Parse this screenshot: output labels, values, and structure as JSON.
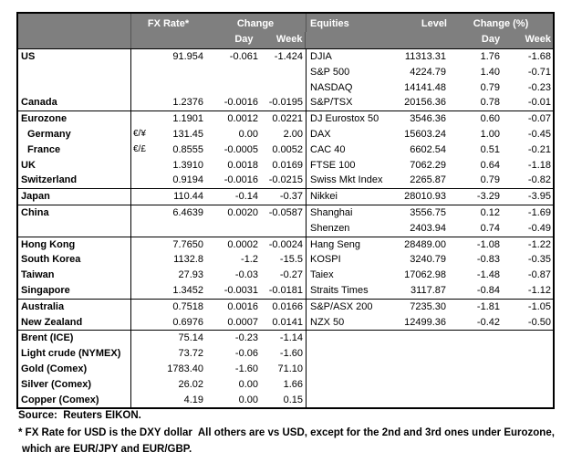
{
  "header": {
    "fx_rate": "FX Rate*",
    "change": "Change",
    "day": "Day",
    "week": "Week",
    "equities": "Equities",
    "level": "Level",
    "change_pct": "Change (%)",
    "day2": "Day",
    "week2": "Week"
  },
  "rows": [
    {
      "label": "US",
      "sym": "",
      "fx": "91.954",
      "fx_day": "-0.061",
      "fx_week": "-1.424",
      "eq": "DJIA",
      "level": "11313.31",
      "eq_day": "1.76",
      "eq_week": "-1.68",
      "indent": false,
      "group_start": false
    },
    {
      "label": "",
      "sym": "",
      "fx": "",
      "fx_day": "",
      "fx_week": "",
      "eq": "S&P 500",
      "level": "4224.79",
      "eq_day": "1.40",
      "eq_week": "-0.71",
      "indent": false,
      "group_start": false
    },
    {
      "label": "",
      "sym": "",
      "fx": "",
      "fx_day": "",
      "fx_week": "",
      "eq": "NASDAQ",
      "level": "14141.48",
      "eq_day": "0.79",
      "eq_week": "-0.23",
      "indent": false,
      "group_start": false
    },
    {
      "label": "Canada",
      "sym": "",
      "fx": "1.2376",
      "fx_day": "-0.0016",
      "fx_week": "-0.0195",
      "eq": "S&P/TSX",
      "level": "20156.36",
      "eq_day": "0.78",
      "eq_week": "-0.01",
      "indent": false,
      "group_start": false
    },
    {
      "label": "Eurozone",
      "sym": "",
      "fx": "1.1901",
      "fx_day": "0.0012",
      "fx_week": "0.0221",
      "eq": "DJ Eurostox 50",
      "level": "3546.36",
      "eq_day": "0.60",
      "eq_week": "-0.07",
      "indent": false,
      "group_start": true
    },
    {
      "label": "Germany",
      "sym": "€/¥",
      "fx": "131.45",
      "fx_day": "0.00",
      "fx_week": "2.00",
      "eq": "DAX",
      "level": "15603.24",
      "eq_day": "1.00",
      "eq_week": "-0.45",
      "indent": true,
      "group_start": false
    },
    {
      "label": "France",
      "sym": "€/£",
      "fx": "0.8555",
      "fx_day": "-0.0005",
      "fx_week": "0.0052",
      "eq": "CAC 40",
      "level": "6602.54",
      "eq_day": "0.51",
      "eq_week": "-0.21",
      "indent": true,
      "group_start": false
    },
    {
      "label": "UK",
      "sym": "",
      "fx": "1.3910",
      "fx_day": "0.0018",
      "fx_week": "0.0169",
      "eq": "FTSE 100",
      "level": "7062.29",
      "eq_day": "0.64",
      "eq_week": "-1.18",
      "indent": false,
      "group_start": false
    },
    {
      "label": "Switzerland",
      "sym": "",
      "fx": "0.9194",
      "fx_day": "-0.0016",
      "fx_week": "-0.0215",
      "eq": "Swiss Mkt Index",
      "level": "2265.87",
      "eq_day": "0.79",
      "eq_week": "-0.82",
      "indent": false,
      "group_start": false
    },
    {
      "label": "Japan",
      "sym": "",
      "fx": "110.44",
      "fx_day": "-0.14",
      "fx_week": "-0.37",
      "eq": "Nikkei",
      "level": "28010.93",
      "eq_day": "-3.29",
      "eq_week": "-3.95",
      "indent": false,
      "group_start": true
    },
    {
      "label": "China",
      "sym": "",
      "fx": "6.4639",
      "fx_day": "0.0020",
      "fx_week": "-0.0587",
      "eq": "Shanghai",
      "level": "3556.75",
      "eq_day": "0.12",
      "eq_week": "-1.69",
      "indent": false,
      "group_start": true
    },
    {
      "label": "",
      "sym": "",
      "fx": "",
      "fx_day": "",
      "fx_week": "",
      "eq": "Shenzen",
      "level": "2403.94",
      "eq_day": "0.74",
      "eq_week": "-0.49",
      "indent": false,
      "group_start": false
    },
    {
      "label": "Hong Kong",
      "sym": "",
      "fx": "7.7650",
      "fx_day": "0.0002",
      "fx_week": "-0.0024",
      "eq": "Hang Seng",
      "level": "28489.00",
      "eq_day": "-1.08",
      "eq_week": "-1.22",
      "indent": false,
      "group_start": true
    },
    {
      "label": "South Korea",
      "sym": "",
      "fx": "1132.8",
      "fx_day": "-1.2",
      "fx_week": "-15.5",
      "eq": "KOSPI",
      "level": "3240.79",
      "eq_day": "-0.83",
      "eq_week": "-0.35",
      "indent": false,
      "group_start": false
    },
    {
      "label": "Taiwan",
      "sym": "",
      "fx": "27.93",
      "fx_day": "-0.03",
      "fx_week": "-0.27",
      "eq": "Taiex",
      "level": "17062.98",
      "eq_day": "-1.48",
      "eq_week": "-0.87",
      "indent": false,
      "group_start": false
    },
    {
      "label": "Singapore",
      "sym": "",
      "fx": "1.3452",
      "fx_day": "-0.0031",
      "fx_week": "-0.0181",
      "eq": "Straits Times",
      "level": "3117.87",
      "eq_day": "-0.84",
      "eq_week": "-1.12",
      "indent": false,
      "group_start": false
    },
    {
      "label": "Australia",
      "sym": "",
      "fx": "0.7518",
      "fx_day": "0.0016",
      "fx_week": "0.0166",
      "eq": "S&P/ASX 200",
      "level": "7235.30",
      "eq_day": "-1.81",
      "eq_week": "-1.05",
      "indent": false,
      "group_start": true
    },
    {
      "label": "New Zealand",
      "sym": "",
      "fx": "0.6976",
      "fx_day": "0.0007",
      "fx_week": "0.0141",
      "eq": "NZX 50",
      "level": "12499.36",
      "eq_day": "-0.42",
      "eq_week": "-0.50",
      "indent": false,
      "group_start": false
    },
    {
      "label": "Brent (ICE)",
      "sym": "",
      "fx": "75.14",
      "fx_day": "-0.23",
      "fx_week": "-1.14",
      "eq": "",
      "level": "",
      "eq_day": "",
      "eq_week": "",
      "indent": false,
      "group_start": true
    },
    {
      "label": "Light crude (NYMEX)",
      "sym": "",
      "fx": "73.72",
      "fx_day": "-0.06",
      "fx_week": "-1.60",
      "eq": "",
      "level": "",
      "eq_day": "",
      "eq_week": "",
      "indent": false,
      "group_start": false
    },
    {
      "label": "Gold (Comex)",
      "sym": "",
      "fx": "1783.40",
      "fx_day": "-1.60",
      "fx_week": "71.10",
      "eq": "",
      "level": "",
      "eq_day": "",
      "eq_week": "",
      "indent": false,
      "group_start": false
    },
    {
      "label": "Silver (Comex)",
      "sym": "",
      "fx": "26.02",
      "fx_day": "0.00",
      "fx_week": "1.66",
      "eq": "",
      "level": "",
      "eq_day": "",
      "eq_week": "",
      "indent": false,
      "group_start": false
    },
    {
      "label": "Copper (Comex)",
      "sym": "",
      "fx": "4.19",
      "fx_day": "0.00",
      "fx_week": "0.15",
      "eq": "",
      "level": "",
      "eq_day": "",
      "eq_week": "",
      "indent": false,
      "group_start": false
    }
  ],
  "footer": {
    "source": "Source:  Reuters EIKON.",
    "note1": "* FX Rate for USD is the DXY dollar  All others are vs USD, except for the 2nd and 3rd ones under Eurozone,",
    "note2": "which are EUR/JPY and EUR/GBP."
  },
  "colors": {
    "header_bg": "#7f7f7f",
    "header_text": "#ffffff",
    "border": "#000000",
    "background": "#ffffff"
  }
}
